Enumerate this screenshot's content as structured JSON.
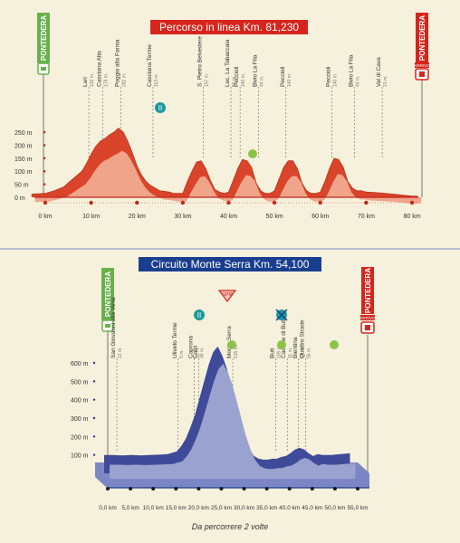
{
  "colors": {
    "background": "#f6f1dc",
    "profile1_top": "#d9442a",
    "profile1_fill": "#f0a48a",
    "profile1_dark": "#b83218",
    "profile2_top": "#3f4a99",
    "profile2_fill": "#9aa2cf",
    "profile2_base": "#7c86c4",
    "title1_bg": "#d6251c",
    "title2_bg": "#1a3e8f",
    "start_green": "#6ab04c",
    "finish_red": "#d6251c",
    "axis_red": "#c0281d"
  },
  "top": {
    "title": "Percorso in linea Km. 81,230",
    "start_label": "PONTEDERA",
    "finish_label": "PONTEDERA",
    "finish_badge": "ARRIVO",
    "divider": true
  },
  "bottom": {
    "title": "Circuito Monte Serra Km. 54,100",
    "start_label": "PONTEDERA",
    "finish_label": "PONTEDERA",
    "finish_badge": "ARRIVO",
    "gpm_badge": "GPM",
    "footnote": "Da percorrere 2 volte"
  },
  "chart_data": [
    {
      "type": "area",
      "title": "Percorso in linea Km. 81,230",
      "x_unit": "km",
      "xlim": [
        0,
        81.23
      ],
      "ylim": [
        0,
        300
      ],
      "x_ticks": [
        0,
        10,
        20,
        30,
        40,
        50,
        60,
        70,
        80
      ],
      "x_tick_labels": [
        "0 km",
        "10 km",
        "20 km",
        "30 km",
        "40 km",
        "50 km",
        "60 km",
        "70 km",
        "80 km"
      ],
      "y_ticks": [
        0,
        50,
        100,
        150,
        200,
        250
      ],
      "y_tick_labels": [
        "0 m",
        "50 m",
        "100 m",
        "150 m",
        "200 m",
        "250 m"
      ],
      "profile": {
        "x": [
          -3,
          0,
          2,
          4,
          6,
          8,
          9,
          10,
          11,
          12,
          13,
          14,
          15,
          16,
          17,
          18,
          19,
          20,
          21,
          22,
          23,
          24,
          25,
          27,
          28,
          30,
          31,
          32,
          33,
          34,
          35,
          36,
          37,
          38,
          39,
          40,
          41,
          42,
          43,
          44,
          45,
          46,
          47,
          48,
          49,
          50,
          51,
          52,
          53,
          54,
          55,
          56,
          57,
          58,
          59,
          60,
          61,
          62,
          63,
          64,
          65,
          66,
          67,
          68,
          69,
          70,
          72,
          74,
          76,
          78,
          80,
          81.23
        ],
        "y": [
          12,
          15,
          25,
          40,
          70,
          100,
          130,
          165,
          195,
          215,
          225,
          240,
          250,
          265,
          250,
          215,
          170,
          120,
          85,
          60,
          45,
          35,
          25,
          20,
          15,
          15,
          60,
          100,
          135,
          140,
          110,
          65,
          30,
          20,
          15,
          20,
          65,
          110,
          145,
          140,
          115,
          55,
          25,
          15,
          15,
          25,
          70,
          115,
          140,
          140,
          110,
          55,
          25,
          15,
          15,
          20,
          60,
          110,
          150,
          145,
          115,
          60,
          35,
          25,
          25,
          20,
          18,
          15,
          12,
          8,
          5,
          5
        ]
      },
      "annotations": [
        {
          "km": 9.5,
          "label": "Lari",
          "alt": "132 m."
        },
        {
          "km": 12.5,
          "label": "Casciana Alta",
          "alt": "178 m."
        },
        {
          "km": 16.5,
          "label": "Poggio alla Farnia",
          "alt": "282 m."
        },
        {
          "km": 23.5,
          "label": "Casciana Terme",
          "alt": "113 m."
        },
        {
          "km": 34.5,
          "label": "S. Pietro Belvedere",
          "alt": "157 m."
        },
        {
          "km": 40.5,
          "label": "Loc. La Tabaccaia",
          "alt": "52 m."
        },
        {
          "km": 42.5,
          "label": "Peccioli",
          "alt": "140 m."
        },
        {
          "km": 46.5,
          "label": "Bivio La Fila",
          "alt": "44 m."
        },
        {
          "km": 52.5,
          "label": "Peccioli",
          "alt": "140 m."
        },
        {
          "km": 62.5,
          "label": "Peccioli",
          "alt": "140 m."
        },
        {
          "km": 67.5,
          "label": "Bivio La Fila",
          "alt": "44 m."
        },
        {
          "km": 73.5,
          "label": "Val di Cava",
          "alt": "21 m."
        }
      ]
    },
    {
      "type": "area",
      "title": "Circuito Monte Serra Km. 54,100",
      "x_unit": "km",
      "xlim": [
        0,
        54.1
      ],
      "ylim": [
        0,
        700
      ],
      "x_ticks": [
        0,
        5,
        10,
        15,
        20,
        25,
        30,
        35,
        40,
        45,
        50,
        55
      ],
      "x_tick_labels": [
        "0,0 km",
        "5,0 km",
        "10,0 km",
        "15,0 km",
        "20,0 km",
        "25,0 km",
        "30,0 km",
        "35,0 km",
        "40,0 km",
        "45,0 km",
        "50,0 km",
        "55,0 km"
      ],
      "y_ticks": [
        100,
        200,
        300,
        400,
        500,
        600
      ],
      "y_tick_labels": [
        "100 m",
        "200 m",
        "300 m",
        "400 m",
        "500 m",
        "600 m"
      ],
      "profile": {
        "x": [
          0,
          2,
          4,
          6,
          8,
          10,
          12,
          14,
          16,
          17,
          18,
          19,
          20,
          21,
          22,
          23,
          24,
          25,
          26,
          27,
          28,
          29,
          30,
          31,
          32,
          33,
          34,
          35,
          36,
          37,
          38,
          39,
          40,
          41,
          42,
          43,
          44,
          45,
          46,
          47,
          48,
          50,
          52,
          54.1
        ],
        "y": [
          50,
          50,
          48,
          50,
          48,
          50,
          52,
          55,
          70,
          100,
          140,
          200,
          270,
          360,
          450,
          540,
          610,
          640,
          590,
          520,
          420,
          320,
          220,
          140,
          80,
          45,
          30,
          25,
          25,
          30,
          30,
          40,
          45,
          60,
          80,
          90,
          80,
          60,
          45,
          55,
          50,
          50,
          55,
          60
        ]
      },
      "annotations": [
        {
          "km": 2.0,
          "label": "San Giovanni alla Vena",
          "alt": "13 m."
        },
        {
          "km": 15.5,
          "label": "Uliveto Terme",
          "alt": "5 m."
        },
        {
          "km": 19.0,
          "label": "Caprona",
          "alt": "12 m."
        },
        {
          "km": 20.0,
          "label": "Calci",
          "alt": "38 m."
        },
        {
          "km": 27.5,
          "label": "Monte Serra",
          "alt": "615 m."
        },
        {
          "km": 37.0,
          "label": "Buti",
          "alt": "105 m."
        },
        {
          "km": 39.5,
          "label": "Cascine di Buti",
          "alt": "11 m."
        },
        {
          "km": 42.0,
          "label": "Bientina",
          "alt": "13 m."
        },
        {
          "km": 43.5,
          "label": "Quattro Strade",
          "alt": "56 m."
        }
      ]
    }
  ]
}
